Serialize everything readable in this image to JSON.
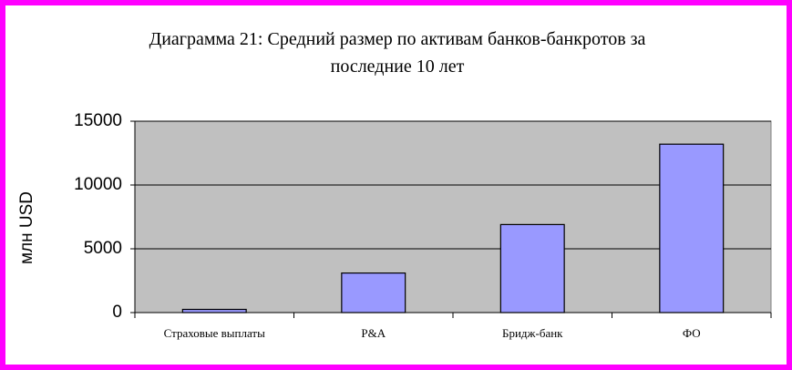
{
  "chart_data": {
    "type": "bar",
    "title": "Диаграмма 21: Средний размер по активам банков-банкротов за последние 10 лет",
    "y_label": "млн USD",
    "categories": [
      "Страховые выплаты",
      "P&A",
      "Бридж-банк",
      "ФО"
    ],
    "values": [
      250,
      3100,
      6900,
      13200
    ],
    "color": "#9999ff",
    "ylim": [
      0,
      15000
    ],
    "yticks": [
      0,
      5000,
      10000,
      15000
    ],
    "grid": true
  }
}
